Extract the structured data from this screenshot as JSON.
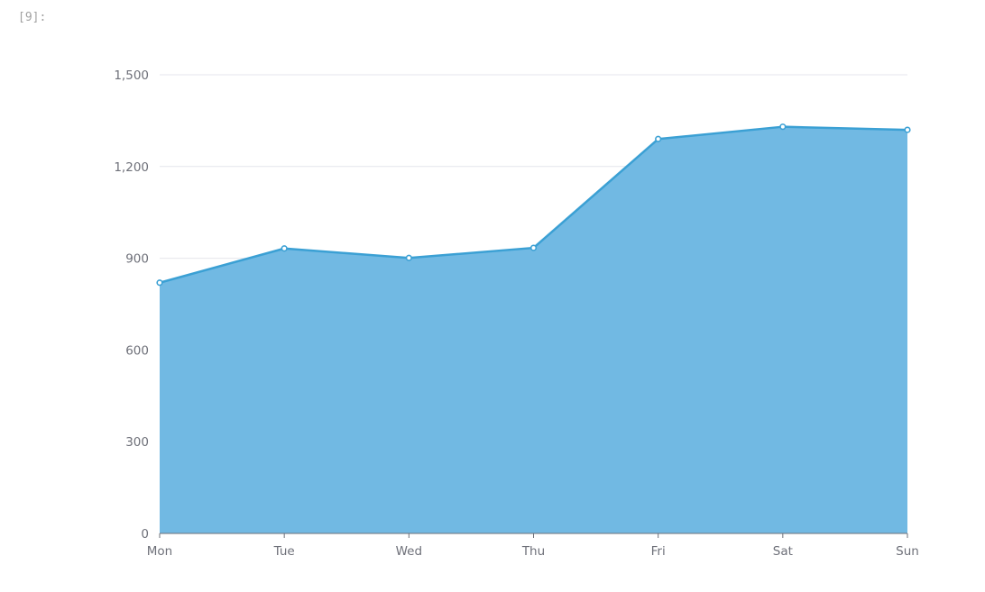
{
  "cell": {
    "prompt": "[9]:"
  },
  "chart_data": {
    "type": "area",
    "categories": [
      "Mon",
      "Tue",
      "Wed",
      "Thu",
      "Fri",
      "Sat",
      "Sun"
    ],
    "series": [
      {
        "values": [
          820,
          932,
          901,
          934,
          1290,
          1330,
          1320
        ],
        "line_color": "#3ba0d4",
        "fill_color": "#71b9e3"
      }
    ],
    "y_ticks": [
      "0",
      "300",
      "600",
      "900",
      "1,200",
      "1,500"
    ],
    "ylim": [
      0,
      1500
    ],
    "grid": true,
    "title": "",
    "xlabel": "",
    "ylabel": ""
  }
}
